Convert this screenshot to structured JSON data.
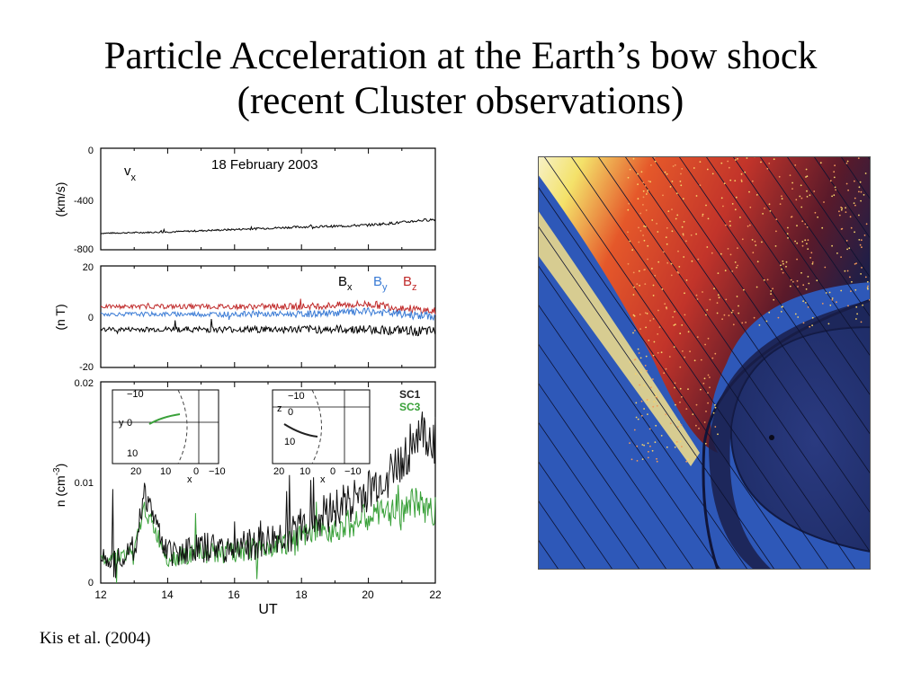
{
  "slide": {
    "title_line1": "Particle Acceleration at the Earth’s bow shock",
    "title_line2": "(recent Cluster observations)",
    "citation": "Kis et al. (2004)"
  },
  "chart_data": [
    {
      "type": "line",
      "panel": "velocity",
      "date_label": "18 February 2003",
      "series_label": "v",
      "series_label_sub": "x",
      "ylabel": "(km/s)",
      "ylim": [
        -800,
        0
      ],
      "yticks": [
        "0",
        "-400",
        "-800"
      ],
      "xlim": [
        12,
        22
      ],
      "color": "#000000",
      "series": [
        {
          "name": "vx",
          "x": [
            12,
            13,
            14,
            15,
            16,
            17,
            18,
            19,
            20,
            21,
            21.5,
            22
          ],
          "values": [
            -670,
            -665,
            -660,
            -650,
            -640,
            -630,
            -620,
            -615,
            -605,
            -585,
            -570,
            -560
          ]
        }
      ]
    },
    {
      "type": "line",
      "panel": "magnetic_field",
      "ylabel": "(n T)",
      "ylim": [
        -20,
        20
      ],
      "yticks": [
        "20",
        "0",
        "-20"
      ],
      "xlim": [
        12,
        22
      ],
      "legend": [
        {
          "main": "B",
          "sub": "x",
          "color": "#000000"
        },
        {
          "main": "B",
          "sub": "y",
          "color": "#3a7bd5"
        },
        {
          "main": "B",
          "sub": "z",
          "color": "#c02a2a"
        }
      ],
      "series": [
        {
          "name": "Bx",
          "color": "#000000",
          "x": [
            12,
            14,
            16,
            18,
            20,
            22
          ],
          "values": [
            -5,
            -5,
            -5,
            -5,
            -5,
            -6
          ]
        },
        {
          "name": "By",
          "color": "#3a7bd5",
          "x": [
            12,
            14,
            16,
            18,
            20,
            22
          ],
          "values": [
            1,
            1,
            1,
            1,
            2,
            0
          ]
        },
        {
          "name": "Bz",
          "color": "#c02a2a",
          "x": [
            12,
            14,
            16,
            18,
            20,
            22
          ],
          "values": [
            4,
            4,
            4,
            4,
            5,
            2
          ]
        }
      ]
    },
    {
      "type": "line",
      "panel": "density",
      "ylabel_main": "n (cm",
      "ylabel_sup": "-3",
      "ylabel_end": ")",
      "ylim": [
        0,
        0.02
      ],
      "yticks": [
        "0.02",
        "0.01",
        "0"
      ],
      "xlabel": "UT",
      "xticks": [
        "12",
        "14",
        "16",
        "18",
        "20",
        "22"
      ],
      "xlim": [
        12,
        22
      ],
      "legend": [
        {
          "label": "SC1",
          "color": "#222222"
        },
        {
          "label": "SC3",
          "color": "#3aa13a"
        }
      ],
      "series": [
        {
          "name": "SC1",
          "color": "#111111",
          "x": [
            12,
            13,
            13.3,
            14,
            15,
            16,
            17,
            18,
            19,
            20,
            20.5,
            21,
            21.5,
            22
          ],
          "values": [
            0.0025,
            0.003,
            0.009,
            0.003,
            0.0035,
            0.0035,
            0.004,
            0.0055,
            0.0075,
            0.009,
            0.0105,
            0.012,
            0.015,
            0.014
          ]
        },
        {
          "name": "SC3",
          "color": "#3aa13a",
          "x": [
            12,
            13,
            13.3,
            14,
            15,
            16,
            17,
            18,
            19,
            20,
            20.5,
            21,
            21.5,
            22
          ],
          "values": [
            0.0025,
            0.003,
            0.0075,
            0.0025,
            0.003,
            0.003,
            0.0035,
            0.0045,
            0.0055,
            0.0065,
            0.007,
            0.0075,
            0.008,
            0.007
          ]
        }
      ],
      "insets": [
        {
          "ylabel": "y",
          "xlabel": "x",
          "yticks": [
            "−10",
            "0",
            "10"
          ],
          "xticks": [
            "20",
            "10",
            "0",
            "−10"
          ]
        },
        {
          "ylabel": "z",
          "xlabel": "x",
          "yticks": [
            "−10",
            "0",
            "10"
          ],
          "xticks": [
            "20",
            "10",
            "0",
            "−10"
          ]
        }
      ]
    }
  ],
  "illustration": {
    "colors": {
      "upstream": "#2e58b8",
      "magnetosphere": "#26367a",
      "foreshock_hot": "#e0422a",
      "foreshock_yellow": "#f4e26a",
      "dark": "#1a1f4a"
    }
  }
}
